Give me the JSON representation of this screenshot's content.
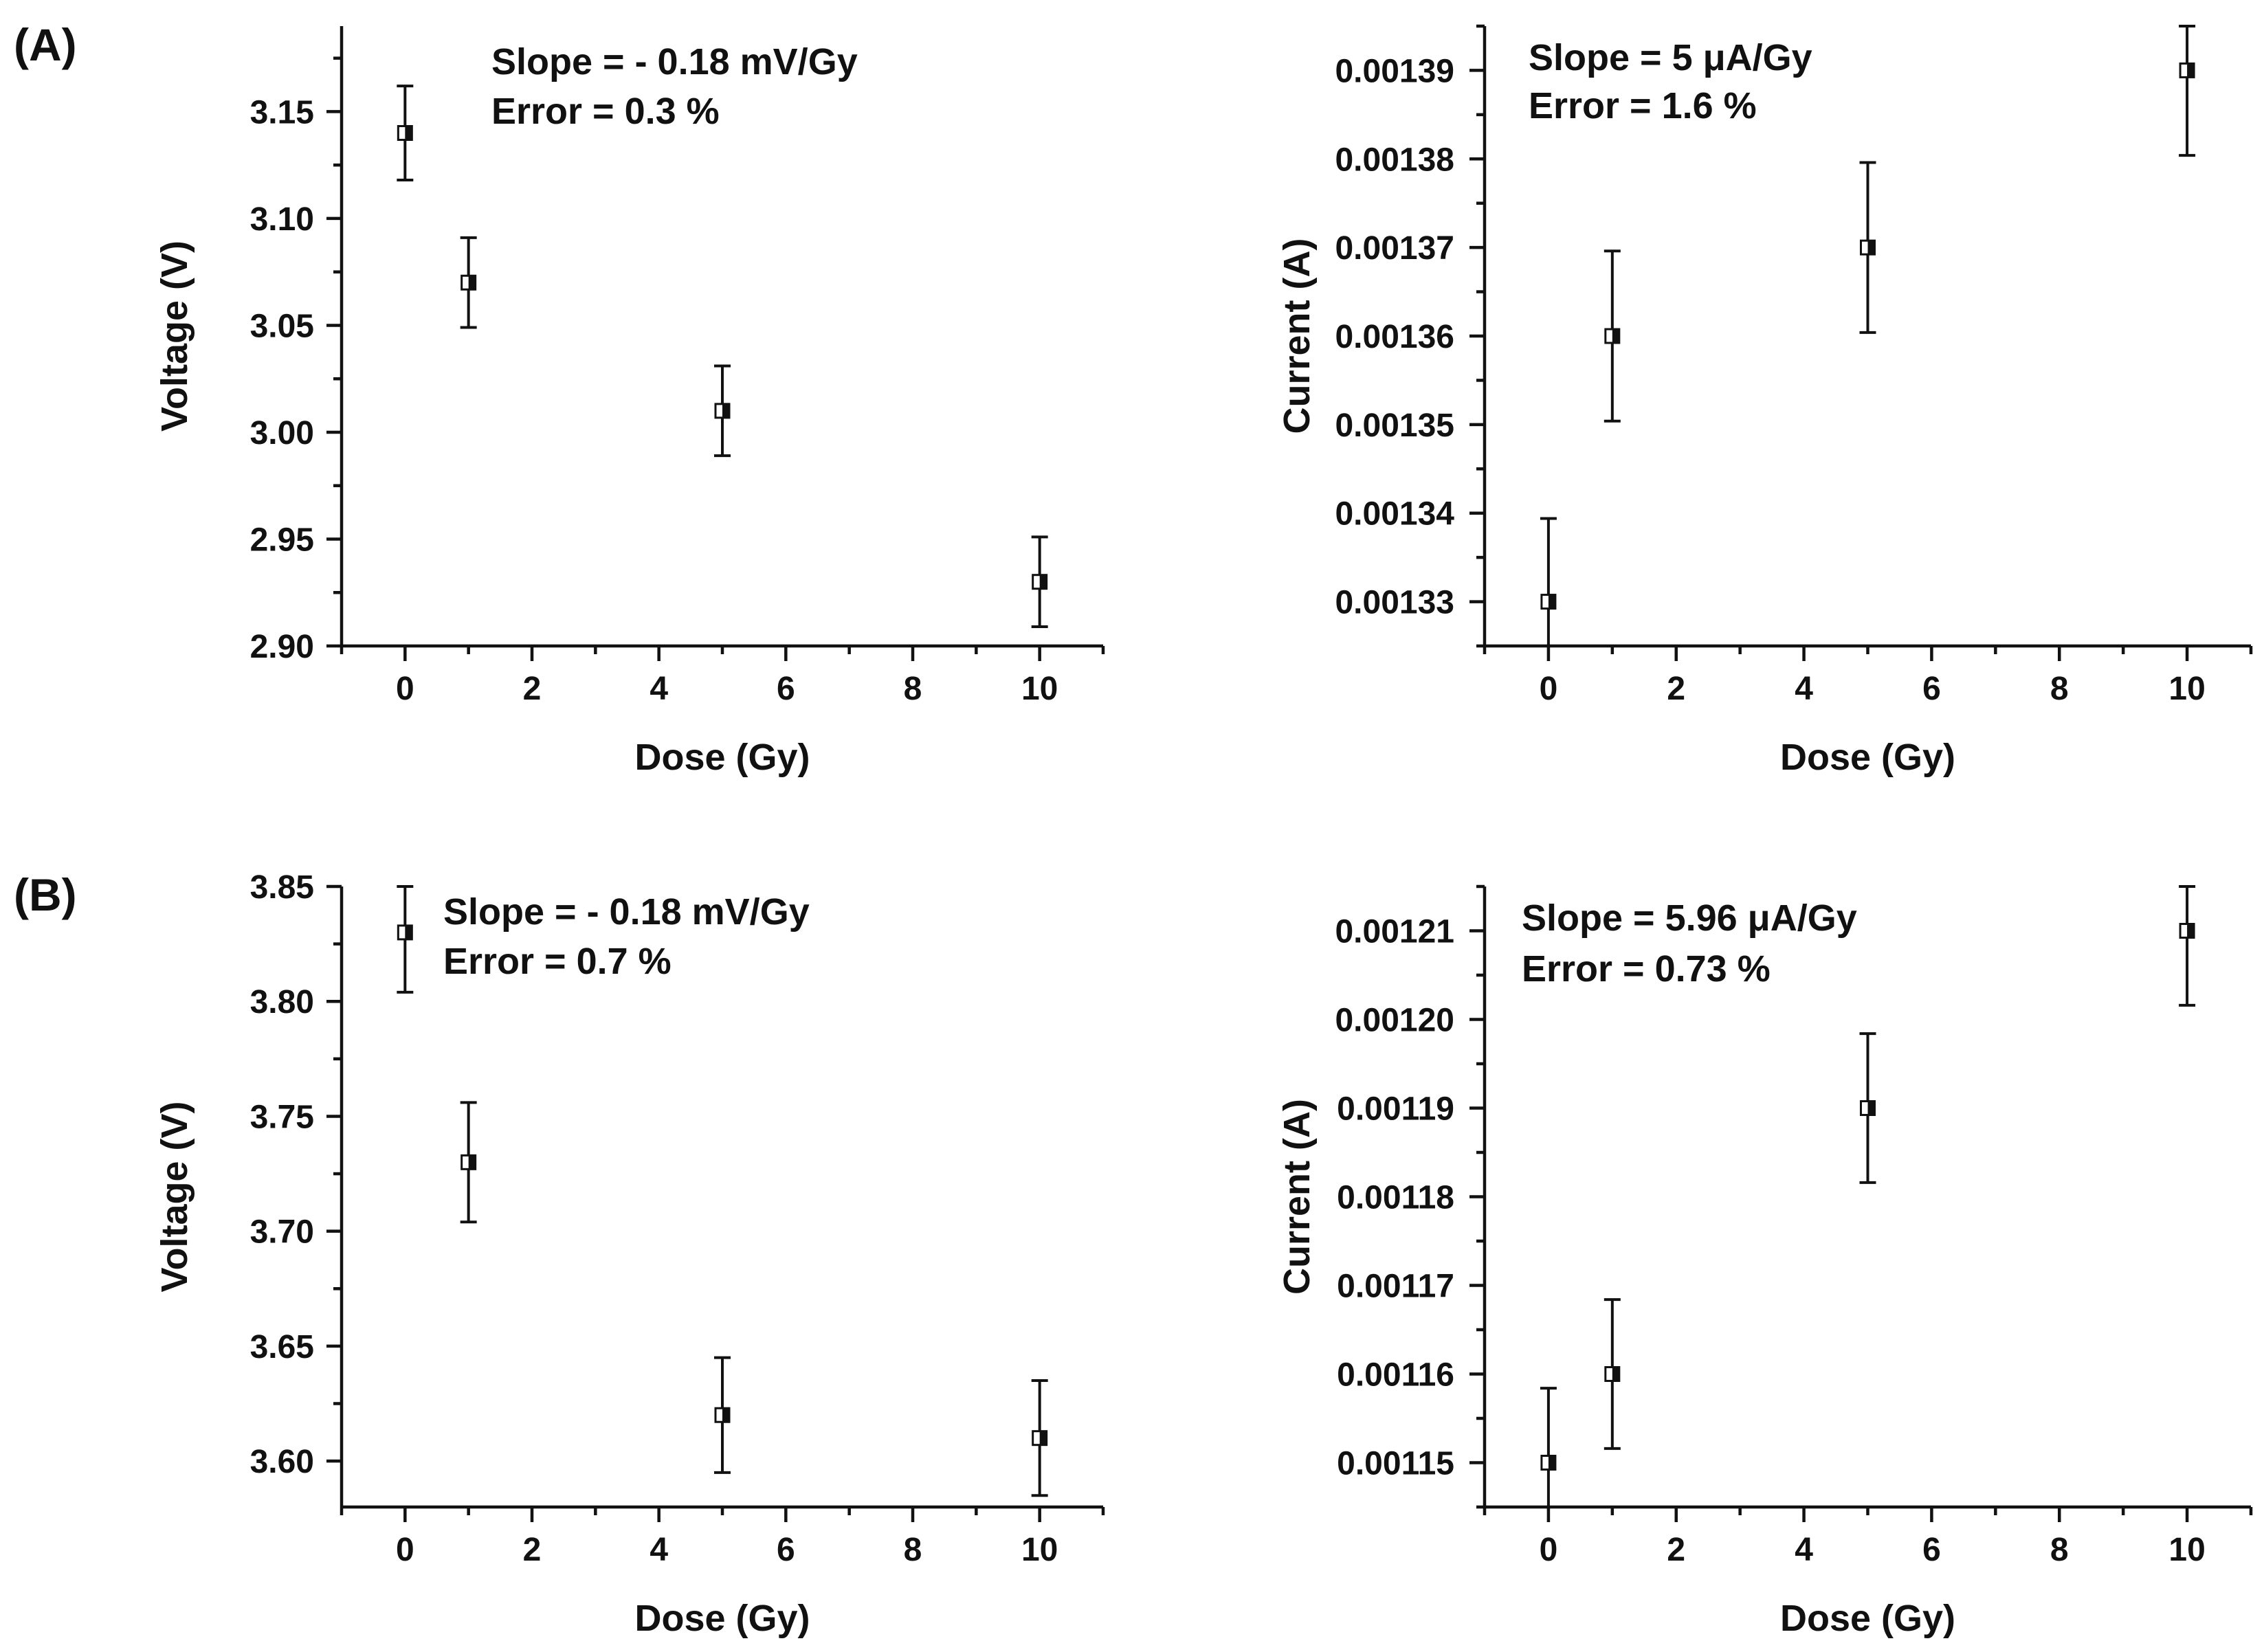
{
  "figure": {
    "panel_labels": [
      "(A)",
      "(B)"
    ]
  },
  "chart_data": [
    {
      "panel": "(A)",
      "type": "scatter",
      "xlabel": "Dose (Gy)",
      "ylabel": "Voltage (V)",
      "xlim": [
        -1,
        11
      ],
      "ylim": [
        2.9,
        3.19
      ],
      "xticks": [
        0,
        2,
        4,
        6,
        8,
        10
      ],
      "xtick_labels": [
        "0",
        "2",
        "4",
        "6",
        "8",
        "10"
      ],
      "yticks": [
        2.9,
        2.95,
        3.0,
        3.05,
        3.1,
        3.15
      ],
      "ytick_labels": [
        "2.90",
        "2.95",
        "3.00",
        "3.05",
        "3.10",
        "3.15"
      ],
      "x": [
        0,
        1,
        5,
        10
      ],
      "y": [
        3.14,
        3.07,
        3.01,
        2.93
      ],
      "yerr": [
        0.022,
        0.021,
        0.021,
        0.021
      ],
      "annotations": [
        "Slope = - 0.18 mV/Gy",
        "Error = 0.3 %"
      ]
    },
    {
      "panel": "(A)",
      "type": "scatter",
      "xlabel": "Dose (Gy)",
      "ylabel": "Current (A)",
      "xlim": [
        -1,
        11
      ],
      "ylim": [
        0.001325,
        0.001395
      ],
      "xticks": [
        0,
        2,
        4,
        6,
        8,
        10
      ],
      "xtick_labels": [
        "0",
        "2",
        "4",
        "6",
        "8",
        "10"
      ],
      "yticks": [
        0.00133,
        0.00134,
        0.00135,
        0.00136,
        0.00137,
        0.00138,
        0.00139
      ],
      "ytick_labels": [
        "0.00133",
        "0.00134",
        "0.00135",
        "0.00136",
        "0.00137",
        "0.00138",
        "0.00139"
      ],
      "x": [
        0,
        1,
        5,
        10
      ],
      "y": [
        0.00133,
        0.00136,
        0.00137,
        0.00139
      ],
      "yerr": [
        9.4e-06,
        9.6e-06,
        9.6e-06,
        9.6e-06
      ],
      "annotations": [
        "Slope = 5 μA/Gy",
        "Error = 1.6 %"
      ]
    },
    {
      "panel": "(B)",
      "type": "scatter",
      "xlabel": "Dose (Gy)",
      "ylabel": "Voltage (V)",
      "xlim": [
        -1,
        11
      ],
      "ylim": [
        3.58,
        3.85
      ],
      "xticks": [
        0,
        2,
        4,
        6,
        8,
        10
      ],
      "xtick_labels": [
        "0",
        "2",
        "4",
        "6",
        "8",
        "10"
      ],
      "yticks": [
        3.6,
        3.65,
        3.7,
        3.75,
        3.8,
        3.85
      ],
      "ytick_labels": [
        "3.60",
        "3.65",
        "3.70",
        "3.75",
        "3.80",
        "3.85"
      ],
      "x": [
        0,
        1,
        5,
        10
      ],
      "y": [
        3.83,
        3.73,
        3.62,
        3.61
      ],
      "yerr": [
        0.026,
        0.026,
        0.025,
        0.025
      ],
      "annotations": [
        "Slope = - 0.18 mV/Gy",
        "Error = 0.7 %"
      ]
    },
    {
      "panel": "(B)",
      "type": "scatter",
      "xlabel": "Dose (Gy)",
      "ylabel": "Current (A)",
      "xlim": [
        -1,
        11
      ],
      "ylim": [
        0.001145,
        0.001215
      ],
      "xticks": [
        0,
        2,
        4,
        6,
        8,
        10
      ],
      "xtick_labels": [
        "0",
        "2",
        "4",
        "6",
        "8",
        "10"
      ],
      "yticks": [
        0.00115,
        0.00116,
        0.00117,
        0.00118,
        0.00119,
        0.0012,
        0.00121
      ],
      "ytick_labels": [
        "0.00115",
        "0.00116",
        "0.00117",
        "0.00118",
        "0.00119",
        "0.00120",
        "0.00121"
      ],
      "x": [
        0,
        1,
        5,
        10
      ],
      "y": [
        0.00115,
        0.00116,
        0.00119,
        0.00121
      ],
      "yerr": [
        8.4e-06,
        8.4e-06,
        8.4e-06,
        8.4e-06
      ],
      "annotations": [
        "Slope = 5.96 μA/Gy",
        "Error = 0.73 %"
      ]
    }
  ]
}
